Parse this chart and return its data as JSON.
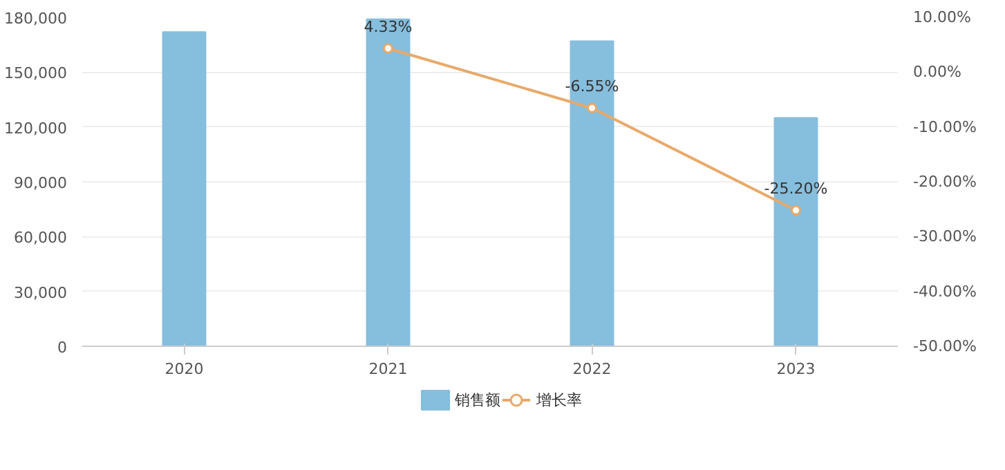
{
  "chart_data": {
    "type": "bar",
    "categories": [
      "2020",
      "2021",
      "2022",
      "2023"
    ],
    "series": [
      {
        "name": "销售额",
        "color": "#86bedd",
        "values": [
          172000,
          179000,
          167000,
          125000
        ]
      },
      {
        "name": "增长率",
        "type": "line",
        "axis": "y2",
        "color": "#e8a96a",
        "marker": "circle",
        "values": [
          null,
          4.33,
          -6.55,
          -25.2
        ],
        "value_labels": [
          null,
          "4.33%",
          "-6.55%",
          "-25.20%"
        ]
      }
    ],
    "ylim": [
      0,
      180000
    ],
    "yticks": [
      {
        "value": 0,
        "label": "0"
      },
      {
        "value": 30000,
        "label": "30,000"
      },
      {
        "value": 60000,
        "label": "60,000"
      },
      {
        "value": 90000,
        "label": "90,000"
      },
      {
        "value": 120000,
        "label": "120,000"
      },
      {
        "value": 150000,
        "label": "150,000"
      },
      {
        "value": 180000,
        "label": "180,000"
      }
    ],
    "y2lim": [
      -50,
      10
    ],
    "y2ticks": [
      {
        "value": 10,
        "label": "10.00%"
      },
      {
        "value": 0,
        "label": "0.00%"
      },
      {
        "value": -10,
        "label": "-10.00%"
      },
      {
        "value": -20,
        "label": "-20.00%"
      },
      {
        "value": -30,
        "label": "-30.00%"
      },
      {
        "value": -40,
        "label": "-40.00%"
      },
      {
        "value": -50,
        "label": "-50.00%"
      }
    ],
    "grid": "y",
    "legend": "bottom"
  }
}
